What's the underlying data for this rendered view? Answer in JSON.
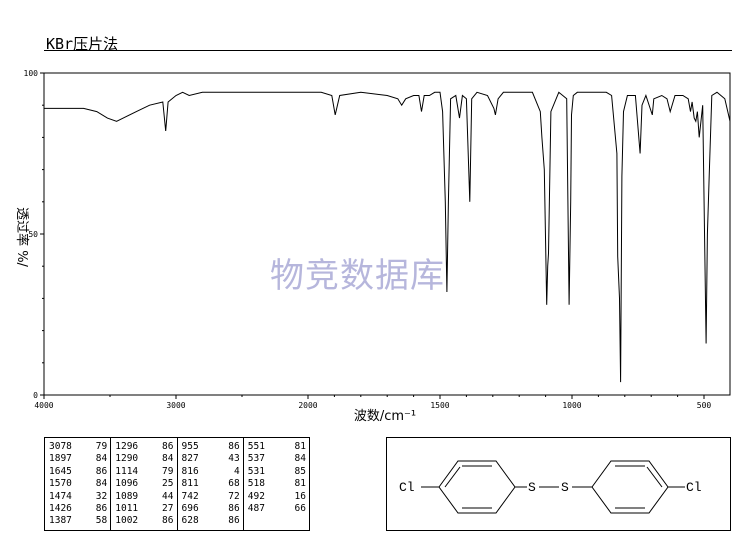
{
  "header": {
    "title": "KBr压片法"
  },
  "watermark": "物竞数据库",
  "chart_data": {
    "type": "line",
    "xlabel": "波数/cm⁻¹",
    "ylabel": "透过率 %/",
    "xlim": [
      4000,
      400
    ],
    "ylim": [
      0,
      100
    ],
    "xticks": [
      4000,
      3000,
      2000,
      1500,
      1000,
      500
    ],
    "yticks": [
      0,
      50,
      100
    ],
    "grid": false,
    "series": [
      {
        "x": [
          4000,
          3700,
          3600,
          3520,
          3450,
          3400,
          3300,
          3200,
          3100,
          3078,
          3060,
          3000,
          2950,
          2900,
          2800,
          2600,
          2400,
          2200,
          2000,
          1950,
          1910,
          1897,
          1880,
          1800,
          1700,
          1660,
          1645,
          1630,
          1600,
          1580,
          1570,
          1560,
          1540,
          1520,
          1500,
          1490,
          1480,
          1474,
          1468,
          1460,
          1440,
          1426,
          1415,
          1400,
          1387,
          1380,
          1360,
          1320,
          1296,
          1290,
          1280,
          1260,
          1240,
          1200,
          1150,
          1120,
          1114,
          1105,
          1096,
          1092,
          1089,
          1080,
          1050,
          1020,
          1011,
          1005,
          1002,
          995,
          980,
          950,
          900,
          870,
          850,
          830,
          827,
          820,
          816,
          811,
          805,
          790,
          760,
          742,
          735,
          720,
          696,
          690,
          660,
          640,
          628,
          610,
          580,
          560,
          551,
          545,
          537,
          531,
          525,
          518,
          505,
          492,
          487,
          480,
          470,
          450,
          420,
          400
        ],
        "y": [
          89,
          89,
          88,
          86,
          85,
          86,
          88,
          90,
          91,
          82,
          91,
          93,
          94,
          93,
          94,
          94,
          94,
          94,
          94,
          94,
          93,
          87,
          93,
          94,
          93,
          92,
          90,
          92,
          93,
          93,
          88,
          93,
          93,
          94,
          94,
          88,
          60,
          32,
          60,
          92,
          93,
          86,
          93,
          92,
          60,
          92,
          94,
          93,
          89,
          87,
          92,
          94,
          94,
          94,
          94,
          88,
          80,
          70,
          28,
          40,
          44,
          88,
          94,
          92,
          28,
          60,
          87,
          93,
          94,
          94,
          94,
          94,
          93,
          75,
          43,
          30,
          4,
          68,
          88,
          93,
          93,
          75,
          90,
          93,
          87,
          92,
          93,
          92,
          88,
          93,
          93,
          92,
          88,
          91,
          86,
          85,
          88,
          80,
          90,
          16,
          50,
          68,
          93,
          94,
          92,
          85
        ]
      }
    ]
  },
  "peak_table": [
    [
      {
        "x": "3078",
        "y": "79"
      },
      {
        "x": "1897",
        "y": "84"
      },
      {
        "x": "1645",
        "y": "86"
      },
      {
        "x": "1570",
        "y": "84"
      },
      {
        "x": "1474",
        "y": "32"
      },
      {
        "x": "1426",
        "y": "86"
      },
      {
        "x": "1387",
        "y": "58"
      }
    ],
    [
      {
        "x": "1296",
        "y": "86"
      },
      {
        "x": "1290",
        "y": "84"
      },
      {
        "x": "1114",
        "y": "79"
      },
      {
        "x": "1096",
        "y": "25"
      },
      {
        "x": "1089",
        "y": "44"
      },
      {
        "x": "1011",
        "y": "27"
      },
      {
        "x": "1002",
        "y": "86"
      }
    ],
    [
      {
        "x": "955",
        "y": "86"
      },
      {
        "x": "827",
        "y": "43"
      },
      {
        "x": "816",
        "y": "4"
      },
      {
        "x": "811",
        "y": "68"
      },
      {
        "x": "742",
        "y": "72"
      },
      {
        "x": "696",
        "y": "86"
      },
      {
        "x": "628",
        "y": "86"
      }
    ],
    [
      {
        "x": "551",
        "y": "81"
      },
      {
        "x": "537",
        "y": "84"
      },
      {
        "x": "531",
        "y": "85"
      },
      {
        "x": "518",
        "y": "81"
      },
      {
        "x": "492",
        "y": "16"
      },
      {
        "x": "487",
        "y": "66"
      }
    ]
  ],
  "structure": {
    "left_atom": "Cl",
    "bridge_1": "S",
    "bridge_2": "S",
    "right_atom": "Cl"
  }
}
